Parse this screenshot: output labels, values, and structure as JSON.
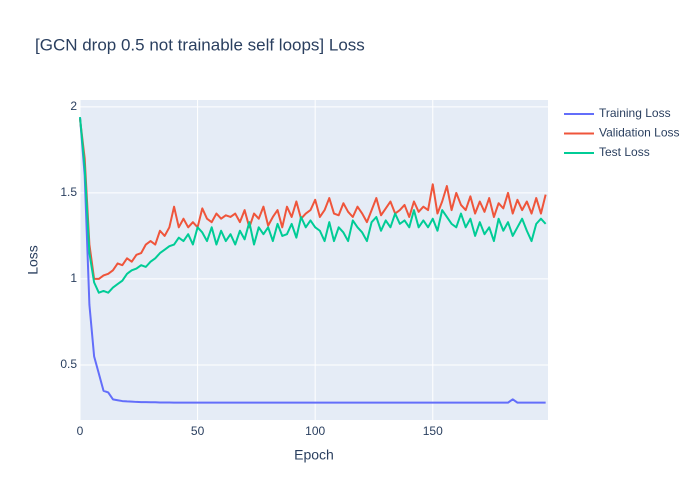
{
  "chart_data": {
    "type": "line",
    "title": "[GCN drop 0.5 not trainable self loops] Loss",
    "x_label": "Epoch",
    "y_label": "Loss",
    "x": [
      0,
      2,
      4,
      6,
      8,
      10,
      12,
      14,
      16,
      18,
      20,
      22,
      24,
      26,
      28,
      30,
      32,
      34,
      36,
      38,
      40,
      42,
      44,
      46,
      48,
      50,
      52,
      54,
      56,
      58,
      60,
      62,
      64,
      66,
      68,
      70,
      72,
      74,
      76,
      78,
      80,
      82,
      84,
      86,
      88,
      90,
      92,
      94,
      96,
      98,
      100,
      102,
      104,
      106,
      108,
      110,
      112,
      114,
      116,
      118,
      120,
      122,
      124,
      126,
      128,
      130,
      132,
      134,
      136,
      138,
      140,
      142,
      144,
      146,
      148,
      150,
      152,
      154,
      156,
      158,
      160,
      162,
      164,
      166,
      168,
      170,
      172,
      174,
      176,
      178,
      180,
      182,
      184,
      186,
      188,
      190,
      192,
      194,
      196,
      198
    ],
    "series": [
      {
        "name": "Training Loss",
        "color": "#636efa",
        "values": [
          1.94,
          1.6,
          0.85,
          0.55,
          0.45,
          0.35,
          0.34,
          0.3,
          0.295,
          0.29,
          0.288,
          0.287,
          0.285,
          0.284,
          0.284,
          0.283,
          0.283,
          0.282,
          0.282,
          0.282,
          0.281,
          0.281,
          0.281,
          0.281,
          0.281,
          0.281,
          0.281,
          0.281,
          0.281,
          0.281,
          0.281,
          0.281,
          0.281,
          0.281,
          0.281,
          0.281,
          0.281,
          0.281,
          0.281,
          0.281,
          0.281,
          0.281,
          0.281,
          0.281,
          0.281,
          0.281,
          0.281,
          0.281,
          0.281,
          0.281,
          0.281,
          0.281,
          0.281,
          0.281,
          0.281,
          0.281,
          0.281,
          0.281,
          0.281,
          0.281,
          0.281,
          0.281,
          0.281,
          0.281,
          0.281,
          0.281,
          0.281,
          0.281,
          0.281,
          0.281,
          0.281,
          0.281,
          0.281,
          0.281,
          0.281,
          0.281,
          0.281,
          0.281,
          0.281,
          0.281,
          0.281,
          0.281,
          0.281,
          0.281,
          0.281,
          0.281,
          0.281,
          0.281,
          0.281,
          0.281,
          0.281,
          0.281,
          0.3,
          0.281,
          0.281,
          0.281,
          0.281,
          0.281,
          0.281,
          0.281
        ]
      },
      {
        "name": "Validation Loss",
        "color": "#EF553B",
        "values": [
          1.93,
          1.7,
          1.2,
          1.0,
          1.0,
          1.02,
          1.03,
          1.05,
          1.09,
          1.08,
          1.12,
          1.1,
          1.14,
          1.15,
          1.2,
          1.22,
          1.2,
          1.28,
          1.25,
          1.3,
          1.42,
          1.3,
          1.35,
          1.3,
          1.33,
          1.3,
          1.41,
          1.35,
          1.33,
          1.38,
          1.35,
          1.37,
          1.36,
          1.38,
          1.33,
          1.4,
          1.3,
          1.38,
          1.35,
          1.42,
          1.31,
          1.36,
          1.4,
          1.3,
          1.42,
          1.36,
          1.45,
          1.35,
          1.38,
          1.4,
          1.46,
          1.36,
          1.4,
          1.47,
          1.38,
          1.37,
          1.44,
          1.39,
          1.36,
          1.42,
          1.38,
          1.33,
          1.4,
          1.47,
          1.37,
          1.41,
          1.45,
          1.38,
          1.4,
          1.43,
          1.36,
          1.45,
          1.39,
          1.42,
          1.4,
          1.55,
          1.38,
          1.45,
          1.54,
          1.4,
          1.5,
          1.43,
          1.4,
          1.48,
          1.38,
          1.45,
          1.39,
          1.47,
          1.36,
          1.44,
          1.41,
          1.5,
          1.38,
          1.46,
          1.4,
          1.45,
          1.38,
          1.47,
          1.38,
          1.49
        ]
      },
      {
        "name": "Test Loss",
        "color": "#00cc96",
        "values": [
          1.94,
          1.65,
          1.15,
          0.98,
          0.92,
          0.93,
          0.92,
          0.95,
          0.97,
          0.99,
          1.03,
          1.05,
          1.06,
          1.08,
          1.07,
          1.1,
          1.12,
          1.15,
          1.17,
          1.19,
          1.2,
          1.24,
          1.22,
          1.26,
          1.2,
          1.3,
          1.27,
          1.22,
          1.3,
          1.2,
          1.28,
          1.22,
          1.26,
          1.2,
          1.28,
          1.23,
          1.33,
          1.2,
          1.3,
          1.26,
          1.3,
          1.22,
          1.32,
          1.25,
          1.26,
          1.32,
          1.24,
          1.36,
          1.3,
          1.34,
          1.3,
          1.28,
          1.22,
          1.33,
          1.22,
          1.3,
          1.27,
          1.22,
          1.34,
          1.3,
          1.27,
          1.22,
          1.33,
          1.36,
          1.28,
          1.34,
          1.3,
          1.38,
          1.32,
          1.34,
          1.3,
          1.4,
          1.3,
          1.34,
          1.3,
          1.35,
          1.28,
          1.4,
          1.36,
          1.32,
          1.3,
          1.38,
          1.3,
          1.35,
          1.25,
          1.33,
          1.26,
          1.3,
          1.22,
          1.35,
          1.28,
          1.33,
          1.25,
          1.3,
          1.35,
          1.28,
          1.22,
          1.32,
          1.35,
          1.32
        ]
      }
    ],
    "xlim": [
      0,
      199
    ],
    "ylim": [
      0.18,
      2.04
    ],
    "xticks": [
      0,
      50,
      100,
      150
    ],
    "yticks": [
      0.5,
      1,
      1.5,
      2
    ],
    "grid": true
  }
}
